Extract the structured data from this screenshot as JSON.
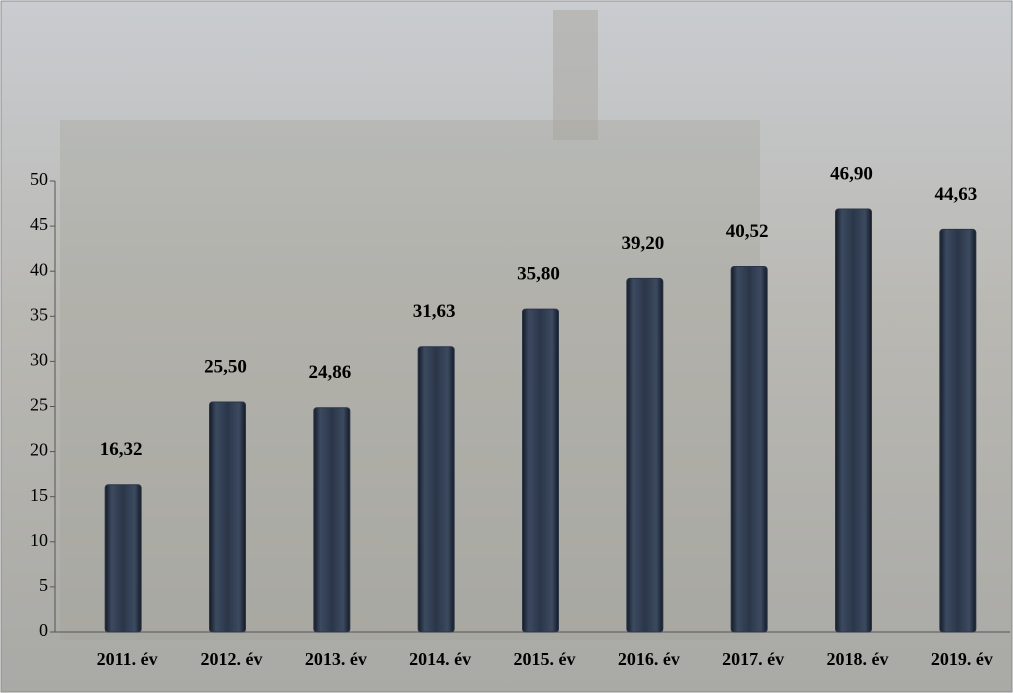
{
  "chart_data": {
    "type": "bar",
    "categories": [
      "2011. év",
      "2012. év",
      "2013. év",
      "2014. év",
      "2015. év",
      "2016. év",
      "2017. év",
      "2018. év",
      "2019. év"
    ],
    "values": [
      16.32,
      25.5,
      24.86,
      31.63,
      35.8,
      39.2,
      40.52,
      46.9,
      44.63
    ],
    "value_labels": [
      "16,32",
      "25,50",
      "24,86",
      "31,63",
      "35,80",
      "39,20",
      "40,52",
      "46,90",
      "44,63"
    ],
    "color": "#2b3649",
    "ylim": [
      0,
      50
    ],
    "yticks": [
      0,
      5,
      10,
      15,
      20,
      25,
      30,
      35,
      40,
      45,
      50
    ],
    "grid": false
  }
}
